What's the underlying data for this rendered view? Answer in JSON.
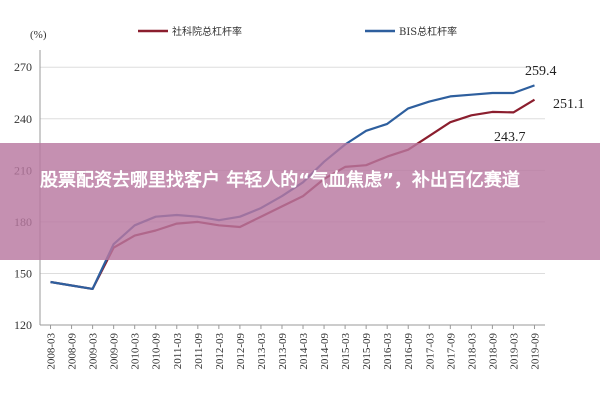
{
  "chart_data": {
    "type": "line",
    "unit_label": "(%)",
    "categories": [
      "2008-03",
      "2008-09",
      "2009-03",
      "2009-09",
      "2010-03",
      "2010-09",
      "2011-03",
      "2011-09",
      "2012-03",
      "2012-09",
      "2013-03",
      "2013-09",
      "2014-03",
      "2014-09",
      "2015-03",
      "2015-09",
      "2016-03",
      "2016-09",
      "2017-03",
      "2017-09",
      "2018-03",
      "2018-09",
      "2019-03",
      "2019-09"
    ],
    "ylim": [
      120,
      280
    ],
    "yticks": [
      120,
      150,
      180,
      210,
      240,
      270
    ],
    "series": [
      {
        "name": "社科院总杠杆率",
        "color": "#8b1e2e",
        "values": [
          145,
          143,
          141,
          165,
          172,
          175,
          179,
          180,
          178,
          177,
          183,
          189,
          195,
          205,
          212,
          213,
          218,
          222,
          230,
          238,
          242,
          244,
          243.7,
          251.1
        ]
      },
      {
        "name": "BIS总杠杆率",
        "color": "#2e5f9e",
        "values": [
          145,
          143,
          141,
          167,
          178,
          183,
          184,
          183,
          181,
          183,
          188,
          195,
          203,
          215,
          225,
          233,
          237,
          246,
          250,
          253,
          254,
          255,
          255,
          259.4
        ]
      }
    ],
    "annotations": [
      {
        "text": "259.4"
      },
      {
        "text": "251.1"
      },
      {
        "text": "243.7"
      }
    ]
  },
  "overlay": {
    "title": "股票配资去哪里找客户 年轻人的“气血焦虑”，补出百亿赛道"
  }
}
